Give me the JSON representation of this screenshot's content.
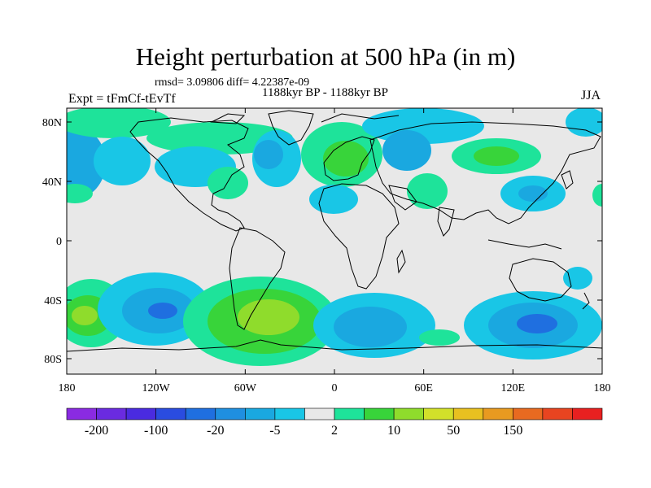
{
  "title": "Height perturbation at 500 hPa (in m)",
  "stats": "rmsd= 3.09806 diff= 4.22387e-09",
  "subtitle": "1188kyr BP - 1188kyr BP",
  "left_label": "Expt = tFmCf-tEvTf",
  "right_label": "JJA",
  "lat_ticks": [
    "80N",
    "40N",
    "0",
    "40S",
    "80S"
  ],
  "lon_ticks": [
    "180",
    "120W",
    "60W",
    "0",
    "60E",
    "120E",
    "180"
  ],
  "colorbar": {
    "colors": [
      "#8a2be2",
      "#6a2be0",
      "#4a2be0",
      "#2a4ce0",
      "#1f6fe0",
      "#1f8fe0",
      "#1aa8e0",
      "#19c6e6",
      "#e8e8e8",
      "#1ee39a",
      "#38d43a",
      "#8fdc2c",
      "#d2e02a",
      "#e8c020",
      "#e89a20",
      "#e86a20",
      "#e84420",
      "#e82020"
    ],
    "labels": [
      "-200",
      "-100",
      "-20",
      "-5",
      "2",
      "10",
      "50",
      "150"
    ]
  },
  "colors": {
    "land_line": "#000000",
    "neutral": "#e8e8e8",
    "blue_dark": "#1f6fe0",
    "blue": "#1f8fe0",
    "blue_light": "#1aa8e0",
    "cyan": "#19c6e6",
    "green_light": "#1ee39a",
    "green": "#38d43a",
    "yellow_green": "#8fdc2c"
  }
}
